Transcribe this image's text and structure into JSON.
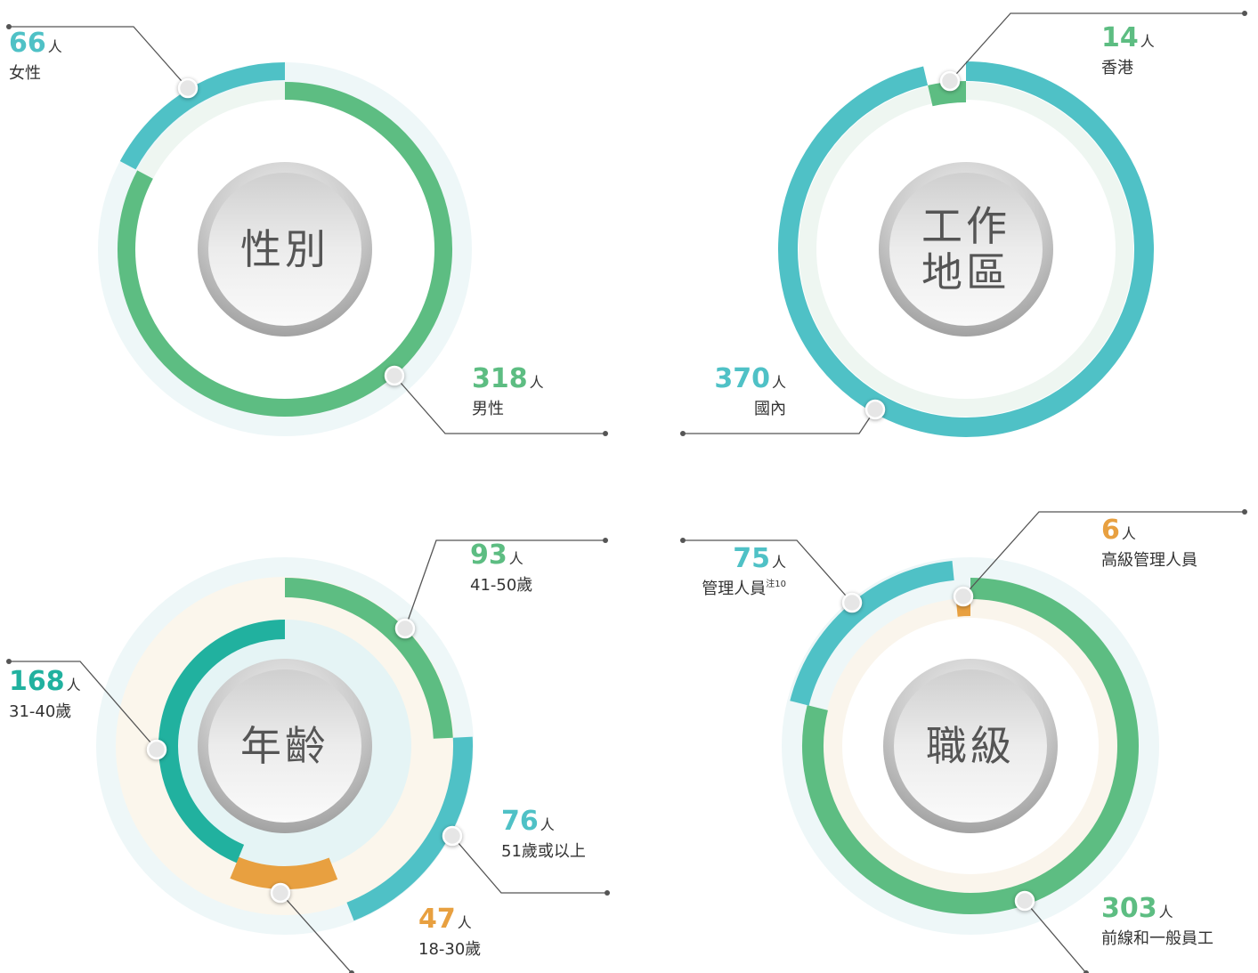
{
  "chart_data": [
    {
      "type": "donut",
      "title": [
        "性別"
      ],
      "unit": "人",
      "segments": [
        {
          "name": "女性",
          "value": 66,
          "color": "#4fc1c6"
        },
        {
          "name": "男性",
          "value": 318,
          "color": "#5dbd82"
        }
      ]
    },
    {
      "type": "donut",
      "title": [
        "工作",
        "地區"
      ],
      "unit": "人",
      "segments": [
        {
          "name": "香港",
          "value": 14,
          "color": "#5dbd82"
        },
        {
          "name": "國內",
          "value": 370,
          "color": "#4fc1c6"
        }
      ]
    },
    {
      "type": "donut",
      "title": [
        "年齡"
      ],
      "unit": "人",
      "segments": [
        {
          "name": "41-50歲",
          "value": 93,
          "color": "#5dbd82"
        },
        {
          "name": "51歲或以上",
          "value": 76,
          "color": "#4fc1c6"
        },
        {
          "name": "18-30歲",
          "value": 47,
          "color": "#e8a040"
        },
        {
          "name": "31-40歲",
          "value": 168,
          "color": "#21b19f"
        }
      ]
    },
    {
      "type": "donut",
      "title": [
        "職級"
      ],
      "unit": "人",
      "segments": [
        {
          "name": "高級管理人員",
          "value": 6,
          "color": "#e8a040"
        },
        {
          "name": "管理人員",
          "note": "注10",
          "value": 75,
          "color": "#4fc1c6"
        },
        {
          "name": "前線和一般員工",
          "value": 303,
          "color": "#5dbd82"
        }
      ]
    }
  ]
}
